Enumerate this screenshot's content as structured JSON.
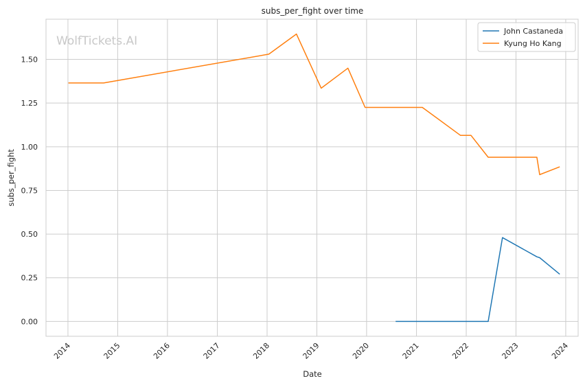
{
  "chart_data": {
    "type": "line",
    "title": "subs_per_fight over time",
    "xlabel": "Date",
    "ylabel": "subs_per_fight",
    "watermark": "WolfTickets.AI",
    "x_ticks": [
      "2014",
      "2015",
      "2016",
      "2017",
      "2018",
      "2019",
      "2020",
      "2021",
      "2022",
      "2023",
      "2024"
    ],
    "y_ticks": [
      "0.00",
      "0.25",
      "0.50",
      "0.75",
      "1.00",
      "1.25",
      "1.50"
    ],
    "xlim": [
      "2013-07-24",
      "2024-04-01"
    ],
    "ylim": [
      -0.085,
      1.73
    ],
    "grid": true,
    "legend_position": "top-right",
    "series": [
      {
        "name": "John Castaneda",
        "color": "#1f77b4",
        "points": [
          {
            "x": "2020-08-01",
            "y": 0.0
          },
          {
            "x": "2022-06-11",
            "y": 0.0
          },
          {
            "x": "2022-09-24",
            "y": 0.48
          },
          {
            "x": "2023-06-03",
            "y": 0.37
          },
          {
            "x": "2023-06-24",
            "y": 0.365
          },
          {
            "x": "2023-11-18",
            "y": 0.27
          }
        ]
      },
      {
        "name": "Kyung Ho Kang",
        "color": "#ff7f0e",
        "points": [
          {
            "x": "2014-01-04",
            "y": 1.365
          },
          {
            "x": "2014-09-20",
            "y": 1.365
          },
          {
            "x": "2018-01-14",
            "y": 1.53
          },
          {
            "x": "2018-08-04",
            "y": 1.645
          },
          {
            "x": "2019-02-02",
            "y": 1.335
          },
          {
            "x": "2019-08-17",
            "y": 1.45
          },
          {
            "x": "2019-12-21",
            "y": 1.225
          },
          {
            "x": "2021-02-13",
            "y": 1.225
          },
          {
            "x": "2021-11-20",
            "y": 1.065
          },
          {
            "x": "2022-02-05",
            "y": 1.065
          },
          {
            "x": "2022-06-11",
            "y": 0.94
          },
          {
            "x": "2023-06-03",
            "y": 0.94
          },
          {
            "x": "2023-06-24",
            "y": 0.84
          },
          {
            "x": "2023-11-18",
            "y": 0.885
          }
        ]
      }
    ]
  }
}
